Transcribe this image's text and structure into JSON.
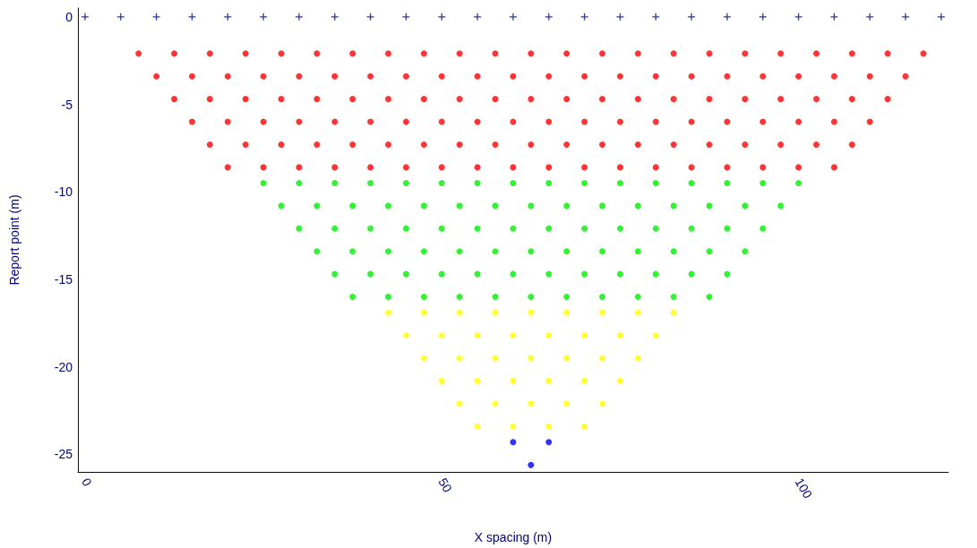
{
  "chart_data": {
    "type": "scatter",
    "xlabel": "X spacing (m)",
    "ylabel": "Report point (m)",
    "xlim": [
      -1,
      121
    ],
    "xticks": [
      0,
      50,
      100
    ],
    "ylim": [
      -26,
      0.5
    ],
    "yticks": [
      0,
      -5,
      -10,
      -15,
      -20,
      -25
    ],
    "grid": false,
    "series": [
      {
        "color": "#000080",
        "marker": "cross",
        "x": [
          0,
          5,
          10,
          15,
          20,
          25,
          30,
          35,
          40,
          45,
          50,
          55,
          60,
          65,
          70,
          75,
          80,
          85,
          90,
          95,
          100,
          105,
          110,
          115,
          120
        ],
        "values": [
          0,
          0,
          0,
          0,
          0,
          0,
          0,
          0,
          0,
          0,
          0,
          0,
          0,
          0,
          0,
          0,
          0,
          0,
          0,
          0,
          0,
          0,
          0,
          0,
          0
        ]
      },
      {
        "color": "#ff0000",
        "marker": "circle",
        "x": [
          7.5,
          12.5,
          17.5,
          22.5,
          27.5,
          32.5,
          37.5,
          42.5,
          47.5,
          52.5,
          57.5,
          62.5,
          67.5,
          72.5,
          77.5,
          82.5,
          87.5,
          92.5,
          97.5,
          102.5,
          107.5,
          112.5,
          117.5
        ],
        "values": [
          -2.1,
          -2.1,
          -2.1,
          -2.1,
          -2.1,
          -2.1,
          -2.1,
          -2.1,
          -2.1,
          -2.1,
          -2.1,
          -2.1,
          -2.1,
          -2.1,
          -2.1,
          -2.1,
          -2.1,
          -2.1,
          -2.1,
          -2.1,
          -2.1,
          -2.1,
          -2.1
        ]
      },
      {
        "color": "#ff0000",
        "marker": "circle",
        "x": [
          10,
          15,
          20,
          25,
          30,
          35,
          40,
          45,
          50,
          55,
          60,
          65,
          70,
          75,
          80,
          85,
          90,
          95,
          100,
          105,
          110,
          115
        ],
        "values": [
          -3.4,
          -3.4,
          -3.4,
          -3.4,
          -3.4,
          -3.4,
          -3.4,
          -3.4,
          -3.4,
          -3.4,
          -3.4,
          -3.4,
          -3.4,
          -3.4,
          -3.4,
          -3.4,
          -3.4,
          -3.4,
          -3.4,
          -3.4,
          -3.4,
          -3.4
        ]
      },
      {
        "color": "#ff0000",
        "marker": "circle",
        "x": [
          12.5,
          17.5,
          22.5,
          27.5,
          32.5,
          37.5,
          42.5,
          47.5,
          52.5,
          57.5,
          62.5,
          67.5,
          72.5,
          77.5,
          82.5,
          87.5,
          92.5,
          97.5,
          102.5,
          107.5,
          112.5
        ],
        "values": [
          -4.7,
          -4.7,
          -4.7,
          -4.7,
          -4.7,
          -4.7,
          -4.7,
          -4.7,
          -4.7,
          -4.7,
          -4.7,
          -4.7,
          -4.7,
          -4.7,
          -4.7,
          -4.7,
          -4.7,
          -4.7,
          -4.7,
          -4.7,
          -4.7
        ]
      },
      {
        "color": "#ff0000",
        "marker": "circle",
        "x": [
          15,
          20,
          25,
          30,
          35,
          40,
          45,
          50,
          55,
          60,
          65,
          70,
          75,
          80,
          85,
          90,
          95,
          100,
          105,
          110
        ],
        "values": [
          -6,
          -6,
          -6,
          -6,
          -6,
          -6,
          -6,
          -6,
          -6,
          -6,
          -6,
          -6,
          -6,
          -6,
          -6,
          -6,
          -6,
          -6,
          -6,
          -6
        ]
      },
      {
        "color": "#ff0000",
        "marker": "circle",
        "x": [
          17.5,
          22.5,
          27.5,
          32.5,
          37.5,
          42.5,
          47.5,
          52.5,
          57.5,
          62.5,
          67.5,
          72.5,
          77.5,
          82.5,
          87.5,
          92.5,
          97.5,
          102.5,
          107.5
        ],
        "values": [
          -7.3,
          -7.3,
          -7.3,
          -7.3,
          -7.3,
          -7.3,
          -7.3,
          -7.3,
          -7.3,
          -7.3,
          -7.3,
          -7.3,
          -7.3,
          -7.3,
          -7.3,
          -7.3,
          -7.3,
          -7.3,
          -7.3
        ]
      },
      {
        "color": "#ff0000",
        "marker": "circle",
        "x": [
          20,
          25,
          30,
          35,
          40,
          45,
          50,
          55,
          60,
          65,
          70,
          75,
          80,
          85,
          90,
          95,
          100,
          105
        ],
        "values": [
          -8.6,
          -8.6,
          -8.6,
          -8.6,
          -8.6,
          -8.6,
          -8.6,
          -8.6,
          -8.6,
          -8.6,
          -8.6,
          -8.6,
          -8.6,
          -8.6,
          -8.6,
          -8.6,
          -8.6,
          -8.6
        ]
      },
      {
        "color": "#00ee00",
        "marker": "circle",
        "x": [
          25,
          30,
          35,
          40,
          45,
          50,
          55,
          60,
          65,
          70,
          75,
          80,
          85,
          90,
          95,
          100
        ],
        "values": [
          -9.5,
          -9.5,
          -9.5,
          -9.5,
          -9.5,
          -9.5,
          -9.5,
          -9.5,
          -9.5,
          -9.5,
          -9.5,
          -9.5,
          -9.5,
          -9.5,
          -9.5,
          -9.5
        ]
      },
      {
        "color": "#00ee00",
        "marker": "circle",
        "x": [
          27.5,
          32.5,
          37.5,
          42.5,
          47.5,
          52.5,
          57.5,
          62.5,
          67.5,
          72.5,
          77.5,
          82.5,
          87.5,
          92.5,
          97.5
        ],
        "values": [
          -10.8,
          -10.8,
          -10.8,
          -10.8,
          -10.8,
          -10.8,
          -10.8,
          -10.8,
          -10.8,
          -10.8,
          -10.8,
          -10.8,
          -10.8,
          -10.8,
          -10.8
        ]
      },
      {
        "color": "#00ee00",
        "marker": "circle",
        "x": [
          30,
          35,
          40,
          45,
          50,
          55,
          60,
          65,
          70,
          75,
          80,
          85,
          90,
          95
        ],
        "values": [
          -12.1,
          -12.1,
          -12.1,
          -12.1,
          -12.1,
          -12.1,
          -12.1,
          -12.1,
          -12.1,
          -12.1,
          -12.1,
          -12.1,
          -12.1,
          -12.1
        ]
      },
      {
        "color": "#00ee00",
        "marker": "circle",
        "x": [
          32.5,
          37.5,
          42.5,
          47.5,
          52.5,
          57.5,
          62.5,
          67.5,
          72.5,
          77.5,
          82.5,
          87.5,
          92.5
        ],
        "values": [
          -13.4,
          -13.4,
          -13.4,
          -13.4,
          -13.4,
          -13.4,
          -13.4,
          -13.4,
          -13.4,
          -13.4,
          -13.4,
          -13.4,
          -13.4
        ]
      },
      {
        "color": "#00ee00",
        "marker": "circle",
        "x": [
          35,
          40,
          45,
          50,
          55,
          60,
          65,
          70,
          75,
          80,
          85,
          90
        ],
        "values": [
          -14.7,
          -14.7,
          -14.7,
          -14.7,
          -14.7,
          -14.7,
          -14.7,
          -14.7,
          -14.7,
          -14.7,
          -14.7,
          -14.7
        ]
      },
      {
        "color": "#00ee00",
        "marker": "circle",
        "x": [
          37.5,
          42.5,
          47.5,
          52.5,
          57.5,
          62.5,
          67.5,
          72.5,
          77.5,
          82.5,
          87.5
        ],
        "values": [
          -16,
          -16,
          -16,
          -16,
          -16,
          -16,
          -16,
          -16,
          -16,
          -16,
          -16
        ]
      },
      {
        "color": "#ffff00",
        "marker": "circle",
        "x": [
          42.5,
          47.5,
          52.5,
          57.5,
          62.5,
          67.5,
          72.5,
          77.5,
          82.5
        ],
        "values": [
          -16.9,
          -16.9,
          -16.9,
          -16.9,
          -16.9,
          -16.9,
          -16.9,
          -16.9,
          -16.9
        ]
      },
      {
        "color": "#ffff00",
        "marker": "circle",
        "x": [
          45,
          50,
          55,
          60,
          65,
          70,
          75,
          80
        ],
        "values": [
          -18.2,
          -18.2,
          -18.2,
          -18.2,
          -18.2,
          -18.2,
          -18.2,
          -18.2
        ]
      },
      {
        "color": "#ffff00",
        "marker": "circle",
        "x": [
          47.5,
          52.5,
          57.5,
          62.5,
          67.5,
          72.5,
          77.5
        ],
        "values": [
          -19.5,
          -19.5,
          -19.5,
          -19.5,
          -19.5,
          -19.5,
          -19.5
        ]
      },
      {
        "color": "#ffff00",
        "marker": "circle",
        "x": [
          50,
          55,
          60,
          65,
          70,
          75
        ],
        "values": [
          -20.8,
          -20.8,
          -20.8,
          -20.8,
          -20.8,
          -20.8
        ]
      },
      {
        "color": "#ffff00",
        "marker": "circle",
        "x": [
          52.5,
          57.5,
          62.5,
          67.5,
          72.5
        ],
        "values": [
          -22.1,
          -22.1,
          -22.1,
          -22.1,
          -22.1
        ]
      },
      {
        "color": "#ffff00",
        "marker": "circle",
        "x": [
          55,
          60,
          65,
          70
        ],
        "values": [
          -23.4,
          -23.4,
          -23.4,
          -23.4
        ]
      },
      {
        "color": "#0000ff",
        "marker": "circle",
        "x": [
          60,
          65
        ],
        "values": [
          -24.3,
          -24.3
        ]
      },
      {
        "color": "#0000ff",
        "marker": "circle",
        "x": [
          62.5
        ],
        "values": [
          -25.6
        ]
      }
    ]
  }
}
